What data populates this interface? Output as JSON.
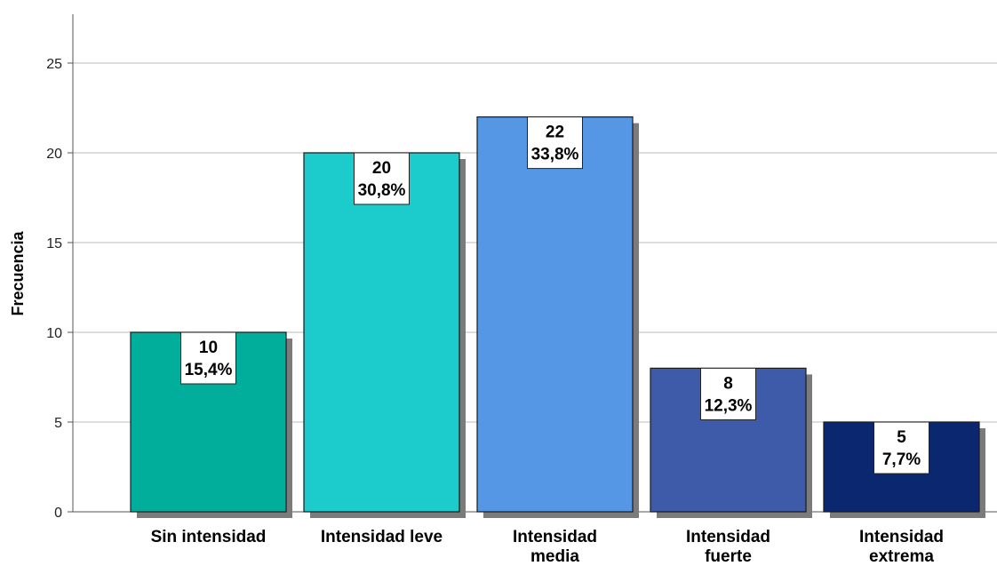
{
  "chart_data": {
    "type": "bar",
    "title": "",
    "xlabel": "",
    "ylabel": "Frecuencia",
    "ylim": [
      0,
      27
    ],
    "yticks": [
      0,
      5,
      10,
      15,
      20,
      25
    ],
    "grid": true,
    "categories": [
      [
        "Sin intensidad"
      ],
      [
        "Intensidad leve"
      ],
      [
        "Intensidad",
        "media"
      ],
      [
        "Intensidad",
        "fuerte"
      ],
      [
        "Intensidad",
        "extrema"
      ]
    ],
    "values": [
      10,
      20,
      22,
      8,
      5
    ],
    "percent_labels": [
      "15,4%",
      "30,8%",
      "33,8%",
      "12,3%",
      "7,7%"
    ],
    "colors": [
      "#00AE9B",
      "#1CCBCB",
      "#5597E4",
      "#3E5BAA",
      "#0B2770"
    ]
  }
}
